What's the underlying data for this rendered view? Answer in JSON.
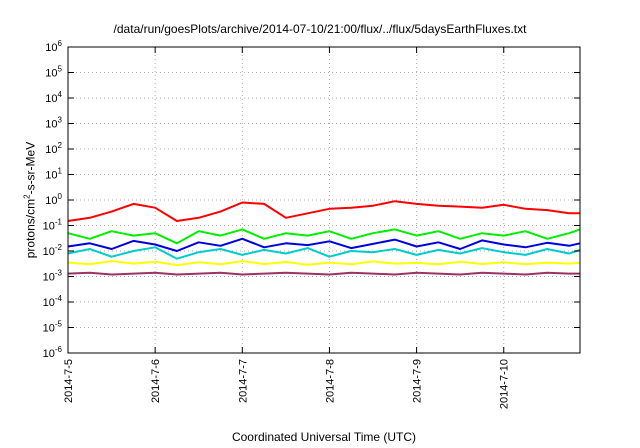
{
  "chart_data": {
    "type": "line",
    "title": "/data/run/goesPlots/archive/2014-07-10/21:00/flux/../flux/5daysEarthFluxes.txt",
    "xlabel": "Coordinated Universal Time (UTC)",
    "ylabel": {
      "prefix": "protons/cm",
      "sup": "2",
      "suffix": "-s-sr-MeV"
    },
    "x_range": [
      "2014-07-05",
      "2014-07-10T21:00"
    ],
    "x_ticks": [
      "2014-7-5",
      "2014-7-6",
      "2014-7-7",
      "2014-7-8",
      "2014-7-9",
      "2014-7-10"
    ],
    "y_scale": "log",
    "ylim": [
      1e-06,
      1000000.0
    ],
    "y_ticks": [
      {
        "base": "10",
        "exp": "-6"
      },
      {
        "base": "10",
        "exp": "-5"
      },
      {
        "base": "10",
        "exp": "-4"
      },
      {
        "base": "10",
        "exp": "-3"
      },
      {
        "base": "10",
        "exp": "-2"
      },
      {
        "base": "10",
        "exp": "-1"
      },
      {
        "base": "10",
        "exp": "0"
      },
      {
        "base": "10",
        "exp": "1"
      },
      {
        "base": "10",
        "exp": "2"
      },
      {
        "base": "10",
        "exp": "3"
      },
      {
        "base": "10",
        "exp": "4"
      },
      {
        "base": "10",
        "exp": "5"
      },
      {
        "base": "10",
        "exp": "6"
      }
    ],
    "grid": true,
    "series": [
      {
        "color": "#ff0000",
        "x": [
          "2014-07-05T00:00",
          "2014-07-05T06:00",
          "2014-07-05T12:00",
          "2014-07-05T18:00",
          "2014-07-06T00:00",
          "2014-07-06T06:00",
          "2014-07-06T12:00",
          "2014-07-06T18:00",
          "2014-07-07T00:00",
          "2014-07-07T06:00",
          "2014-07-07T12:00",
          "2014-07-07T18:00",
          "2014-07-08T00:00",
          "2014-07-08T06:00",
          "2014-07-08T12:00",
          "2014-07-08T18:00",
          "2014-07-09T00:00",
          "2014-07-09T06:00",
          "2014-07-09T12:00",
          "2014-07-09T18:00",
          "2014-07-10T00:00",
          "2014-07-10T06:00",
          "2014-07-10T12:00",
          "2014-07-10T18:00",
          "2014-07-10T21:00"
        ],
        "y": [
          0.15,
          0.2,
          0.35,
          0.7,
          0.5,
          0.15,
          0.2,
          0.35,
          0.8,
          0.7,
          0.2,
          0.3,
          0.45,
          0.5,
          0.6,
          0.9,
          0.7,
          0.6,
          0.55,
          0.5,
          0.65,
          0.45,
          0.4,
          0.3,
          0.3
        ]
      },
      {
        "color": "#00ee00",
        "x": [
          "2014-07-05T00:00",
          "2014-07-05T06:00",
          "2014-07-05T12:00",
          "2014-07-05T18:00",
          "2014-07-06T00:00",
          "2014-07-06T06:00",
          "2014-07-06T12:00",
          "2014-07-06T18:00",
          "2014-07-07T00:00",
          "2014-07-07T06:00",
          "2014-07-07T12:00",
          "2014-07-07T18:00",
          "2014-07-08T00:00",
          "2014-07-08T06:00",
          "2014-07-08T12:00",
          "2014-07-08T18:00",
          "2014-07-09T00:00",
          "2014-07-09T06:00",
          "2014-07-09T12:00",
          "2014-07-09T18:00",
          "2014-07-10T00:00",
          "2014-07-10T06:00",
          "2014-07-10T12:00",
          "2014-07-10T18:00",
          "2014-07-10T21:00"
        ],
        "y": [
          0.05,
          0.03,
          0.06,
          0.04,
          0.05,
          0.02,
          0.06,
          0.04,
          0.07,
          0.03,
          0.05,
          0.04,
          0.06,
          0.03,
          0.05,
          0.07,
          0.04,
          0.06,
          0.03,
          0.05,
          0.04,
          0.06,
          0.03,
          0.05,
          0.07
        ]
      },
      {
        "color": "#00cccc",
        "x": [
          "2014-07-05T00:00",
          "2014-07-05T06:00",
          "2014-07-05T12:00",
          "2014-07-05T18:00",
          "2014-07-06T00:00",
          "2014-07-06T06:00",
          "2014-07-06T12:00",
          "2014-07-06T18:00",
          "2014-07-07T00:00",
          "2014-07-07T06:00",
          "2014-07-07T12:00",
          "2014-07-07T18:00",
          "2014-07-08T00:00",
          "2014-07-08T06:00",
          "2014-07-08T12:00",
          "2014-07-08T18:00",
          "2014-07-09T00:00",
          "2014-07-09T06:00",
          "2014-07-09T12:00",
          "2014-07-09T18:00",
          "2014-07-10T00:00",
          "2014-07-10T06:00",
          "2014-07-10T12:00",
          "2014-07-10T18:00",
          "2014-07-10T21:00"
        ],
        "y": [
          0.008,
          0.012,
          0.006,
          0.01,
          0.014,
          0.005,
          0.009,
          0.012,
          0.007,
          0.011,
          0.008,
          0.013,
          0.006,
          0.01,
          0.009,
          0.012,
          0.007,
          0.011,
          0.008,
          0.013,
          0.009,
          0.007,
          0.012,
          0.008,
          0.011
        ]
      },
      {
        "color": "#0000dd",
        "x": [
          "2014-07-05T00:00",
          "2014-07-05T06:00",
          "2014-07-05T12:00",
          "2014-07-05T18:00",
          "2014-07-06T00:00",
          "2014-07-06T06:00",
          "2014-07-06T12:00",
          "2014-07-06T18:00",
          "2014-07-07T00:00",
          "2014-07-07T06:00",
          "2014-07-07T12:00",
          "2014-07-07T18:00",
          "2014-07-08T00:00",
          "2014-07-08T06:00",
          "2014-07-08T12:00",
          "2014-07-08T18:00",
          "2014-07-09T00:00",
          "2014-07-09T06:00",
          "2014-07-09T12:00",
          "2014-07-09T18:00",
          "2014-07-10T00:00",
          "2014-07-10T06:00",
          "2014-07-10T12:00",
          "2014-07-10T18:00",
          "2014-07-10T21:00"
        ],
        "y": [
          0.015,
          0.02,
          0.012,
          0.025,
          0.018,
          0.01,
          0.022,
          0.016,
          0.03,
          0.014,
          0.02,
          0.017,
          0.024,
          0.013,
          0.019,
          0.028,
          0.015,
          0.022,
          0.012,
          0.026,
          0.018,
          0.014,
          0.021,
          0.016,
          0.02
        ]
      },
      {
        "color": "#ffff00",
        "x": [
          "2014-07-05T00:00",
          "2014-07-05T06:00",
          "2014-07-05T12:00",
          "2014-07-05T18:00",
          "2014-07-06T00:00",
          "2014-07-06T06:00",
          "2014-07-06T12:00",
          "2014-07-06T18:00",
          "2014-07-07T00:00",
          "2014-07-07T06:00",
          "2014-07-07T12:00",
          "2014-07-07T18:00",
          "2014-07-08T00:00",
          "2014-07-08T06:00",
          "2014-07-08T12:00",
          "2014-07-08T18:00",
          "2014-07-09T00:00",
          "2014-07-09T06:00",
          "2014-07-09T12:00",
          "2014-07-09T18:00",
          "2014-07-10T00:00",
          "2014-07-10T06:00",
          "2014-07-10T12:00",
          "2014-07-10T18:00",
          "2014-07-10T21:00"
        ],
        "y": [
          0.0035,
          0.003,
          0.004,
          0.0032,
          0.0038,
          0.0028,
          0.0036,
          0.003,
          0.004,
          0.0031,
          0.0037,
          0.0029,
          0.0035,
          0.003,
          0.0039,
          0.0032,
          0.0034,
          0.003,
          0.0038,
          0.0031,
          0.0036,
          0.003,
          0.0035,
          0.0032,
          0.0034
        ]
      },
      {
        "color": "#993366",
        "x": [
          "2014-07-05T00:00",
          "2014-07-05T06:00",
          "2014-07-05T12:00",
          "2014-07-05T18:00",
          "2014-07-06T00:00",
          "2014-07-06T06:00",
          "2014-07-06T12:00",
          "2014-07-06T18:00",
          "2014-07-07T00:00",
          "2014-07-07T06:00",
          "2014-07-07T12:00",
          "2014-07-07T18:00",
          "2014-07-08T00:00",
          "2014-07-08T06:00",
          "2014-07-08T12:00",
          "2014-07-08T18:00",
          "2014-07-09T00:00",
          "2014-07-09T06:00",
          "2014-07-09T12:00",
          "2014-07-09T18:00",
          "2014-07-10T00:00",
          "2014-07-10T06:00",
          "2014-07-10T12:00",
          "2014-07-10T18:00",
          "2014-07-10T21:00"
        ],
        "y": [
          0.0013,
          0.0014,
          0.0012,
          0.0013,
          0.0014,
          0.0012,
          0.0013,
          0.0014,
          0.0012,
          0.0013,
          0.0014,
          0.0013,
          0.0012,
          0.0014,
          0.0013,
          0.0012,
          0.0014,
          0.0013,
          0.0012,
          0.0014,
          0.0013,
          0.0012,
          0.0014,
          0.0013,
          0.0013
        ]
      }
    ]
  }
}
